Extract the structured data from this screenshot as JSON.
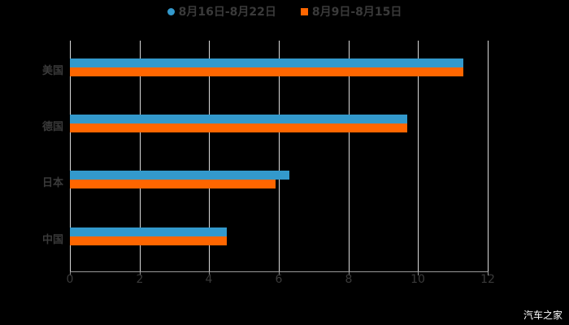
{
  "chart_data": {
    "type": "bar",
    "orientation": "horizontal",
    "title": "",
    "categories": [
      "美国",
      "德国",
      "日本",
      "中国"
    ],
    "series": [
      {
        "name": "8月16日-8月22日",
        "color": "#3399cc",
        "values": [
          11.3,
          9.7,
          6.3,
          4.5
        ]
      },
      {
        "name": "8月9日-8月15日",
        "color": "#ff6600",
        "values": [
          11.3,
          9.7,
          5.9,
          4.5
        ]
      }
    ],
    "xlabel": "",
    "ylabel": "",
    "xlim": [
      0,
      12
    ],
    "xticks": [
      "0",
      "2",
      "4",
      "6",
      "8",
      "10",
      "12"
    ],
    "grid": true,
    "legend_position": "top"
  },
  "legend": {
    "series0": "8月16日-8月22日",
    "series1": "8月9日-8月15日"
  },
  "axis": {
    "x_ticks": [
      "0",
      "2",
      "4",
      "6",
      "8",
      "10",
      "12"
    ],
    "y_labels": [
      "美国",
      "德国",
      "日本",
      "中国"
    ]
  },
  "watermark": "汽车之家"
}
